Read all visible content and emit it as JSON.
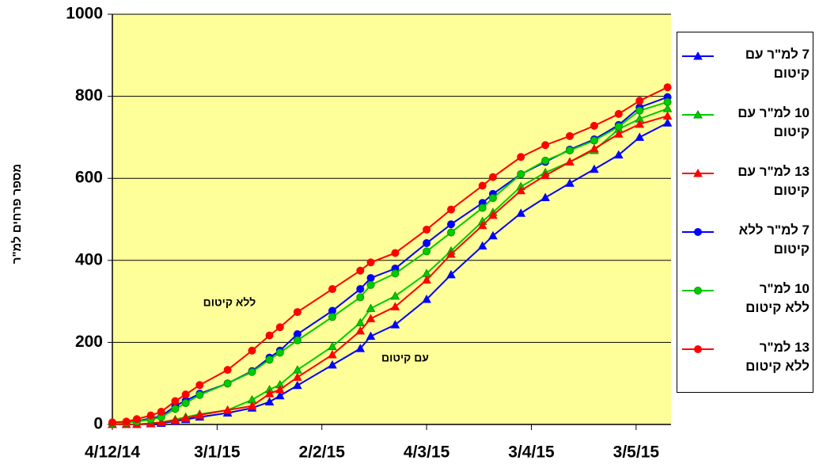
{
  "chart_data": {
    "type": "line",
    "y_label": "מספר פרחים למ\"ר",
    "annotations": [
      "ללא קיטום",
      "עם קיטום"
    ],
    "x": [
      "4/12/14",
      "8/12/14",
      "11/12/14",
      "15/12/14",
      "18/12/14",
      "22/12/14",
      "25/12/14",
      "29/12/14",
      "6/1/15",
      "13/1/15",
      "18/1/15",
      "21/1/15",
      "26/1/15",
      "5/2/15",
      "13/2/15",
      "16/2/15",
      "23/2/15",
      "4/3/15",
      "11/3/15",
      "20/3/15",
      "23/3/15",
      "31/3/15",
      "7/4/15",
      "14/4/15",
      "21/4/15",
      "28/4/15",
      "4/5/15",
      "12/5/15"
    ],
    "xlim": [
      "4/12/14",
      "13/5/15"
    ],
    "xticks": [
      "4/12/14",
      "3/1/15",
      "2/2/15",
      "4/3/15",
      "3/4/15",
      "3/5/15"
    ],
    "ylim": [
      0,
      1000
    ],
    "yticks": [
      0,
      200,
      400,
      600,
      800,
      1000
    ],
    "grid": true,
    "background": "#ffff99",
    "series": [
      {
        "name": "7 למ\"ר עם קיטום",
        "color": "#0000ff",
        "marker": "triangle",
        "values": [
          0,
          0,
          0,
          2,
          3,
          8,
          12,
          18,
          28,
          40,
          55,
          70,
          95,
          145,
          185,
          215,
          243,
          305,
          365,
          435,
          460,
          515,
          553,
          588,
          622,
          657,
          700,
          735
        ]
      },
      {
        "name": "10 למ\"ר עם קיטום",
        "color": "#00cc00",
        "marker": "triangle",
        "values": [
          0,
          0,
          0,
          3,
          5,
          12,
          18,
          25,
          35,
          60,
          85,
          97,
          133,
          190,
          248,
          283,
          313,
          368,
          423,
          495,
          517,
          580,
          614,
          640,
          668,
          720,
          745,
          770
        ]
      },
      {
        "name": "13 למ\"ר עם קיטום",
        "color": "#ff0000",
        "marker": "triangle",
        "values": [
          0,
          0,
          0,
          3,
          5,
          10,
          15,
          23,
          35,
          45,
          75,
          85,
          115,
          170,
          228,
          258,
          287,
          352,
          415,
          485,
          510,
          570,
          607,
          640,
          672,
          708,
          732,
          752
        ]
      },
      {
        "name": "7 למ\"ר ללא קיטום",
        "color": "#0000ff",
        "marker": "circle",
        "values": [
          3,
          5,
          8,
          15,
          20,
          45,
          58,
          75,
          100,
          130,
          163,
          180,
          220,
          277,
          330,
          357,
          380,
          442,
          488,
          540,
          562,
          610,
          640,
          670,
          695,
          730,
          773,
          798
        ]
      },
      {
        "name": "10 למ\"ר ללא קיטום",
        "color": "#00cc00",
        "marker": "circle",
        "values": [
          2,
          4,
          7,
          12,
          18,
          38,
          52,
          72,
          100,
          128,
          158,
          175,
          205,
          262,
          310,
          340,
          368,
          422,
          468,
          528,
          552,
          610,
          643,
          668,
          692,
          726,
          765,
          786
        ]
      },
      {
        "name": "13 למ\"ר ללא קיטום",
        "color": "#ff0000",
        "marker": "circle",
        "values": [
          5,
          7,
          13,
          22,
          31,
          57,
          73,
          96,
          133,
          180,
          217,
          237,
          274,
          330,
          375,
          395,
          418,
          475,
          524,
          582,
          603,
          652,
          681,
          703,
          728,
          757,
          789,
          822
        ]
      }
    ]
  }
}
